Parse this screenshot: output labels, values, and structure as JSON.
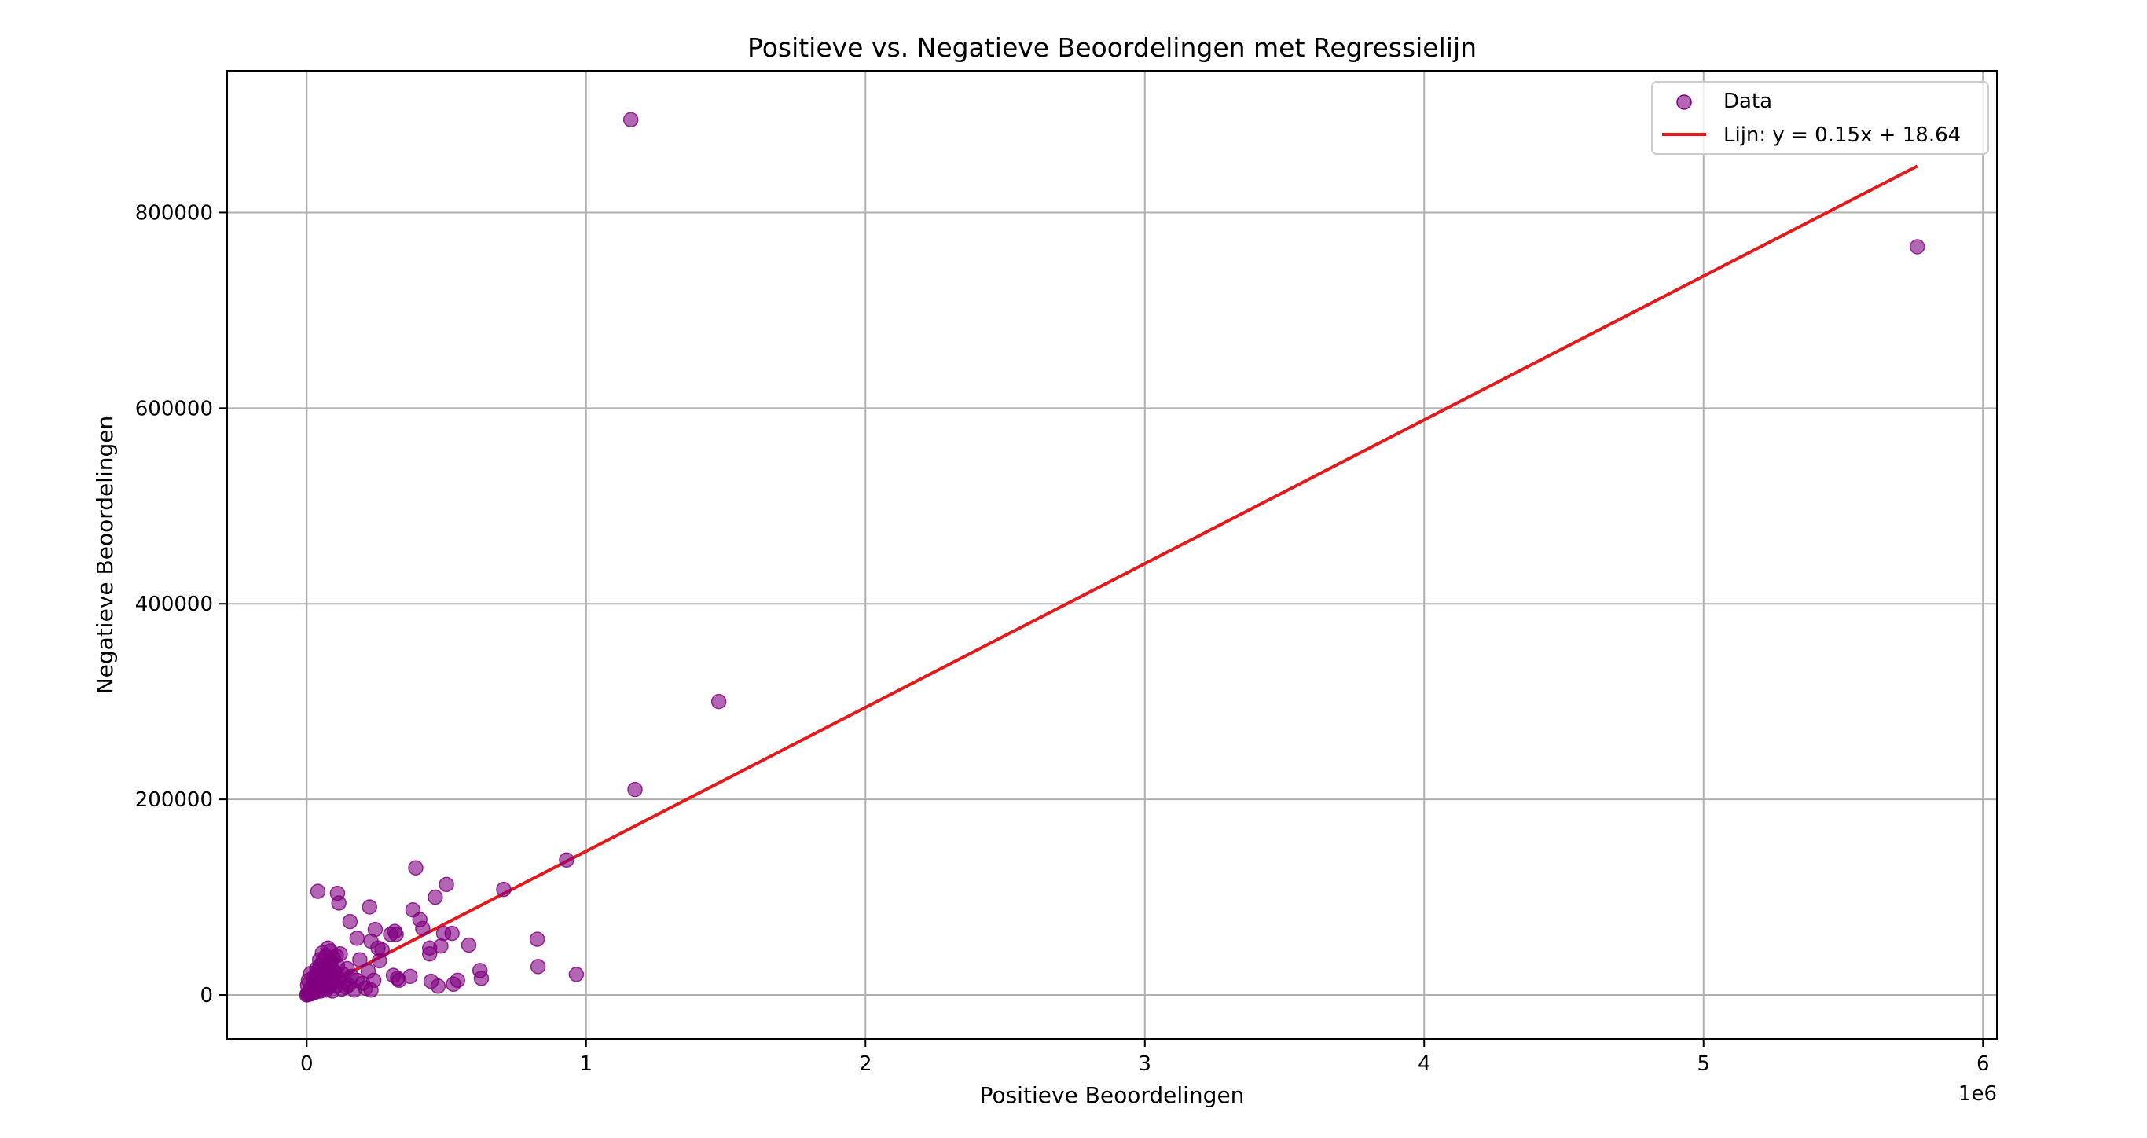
{
  "chart_data": {
    "type": "scatter",
    "title": "Positieve vs. Negatieve Beoordelingen met Regressielijn",
    "xlabel": "Positieve Beoordelingen",
    "ylabel": "Negatieve Beoordelingen",
    "x_multiplier_label": "1e6",
    "xlim": [
      -285000,
      6050000
    ],
    "ylim": [
      -45000,
      945000
    ],
    "xticks": [
      0,
      1000000,
      2000000,
      3000000,
      4000000,
      5000000,
      6000000
    ],
    "xtick_labels": [
      "0",
      "1",
      "2",
      "3",
      "4",
      "5",
      "6"
    ],
    "yticks": [
      0,
      200000,
      400000,
      600000,
      800000
    ],
    "ytick_labels": [
      "0",
      "200000",
      "400000",
      "600000",
      "800000"
    ],
    "grid": true,
    "legend_position": "top-right",
    "colors": {
      "points": "#800080",
      "line": "#e31a1c",
      "grid": "#b0b0b0"
    },
    "series": [
      {
        "name": "Data",
        "kind": "scatter",
        "points": [
          [
            0,
            0
          ],
          [
            2000,
            1000
          ],
          [
            5000,
            500
          ],
          [
            8000,
            3000
          ],
          [
            10000,
            2000
          ],
          [
            12000,
            6000
          ],
          [
            15000,
            1000
          ],
          [
            18000,
            4000
          ],
          [
            20000,
            8000
          ],
          [
            22000,
            2000
          ],
          [
            25000,
            12000
          ],
          [
            28000,
            5000
          ],
          [
            30000,
            15000
          ],
          [
            32000,
            3000
          ],
          [
            35000,
            20000
          ],
          [
            38000,
            9000
          ],
          [
            40000,
            25000
          ],
          [
            42000,
            6000
          ],
          [
            45000,
            14000
          ],
          [
            48000,
            30000
          ],
          [
            50000,
            4000
          ],
          [
            52000,
            18000
          ],
          [
            55000,
            10000
          ],
          [
            58000,
            35000
          ],
          [
            60000,
            7000
          ],
          [
            62000,
            22000
          ],
          [
            65000,
            12000
          ],
          [
            68000,
            40000
          ],
          [
            70000,
            5000
          ],
          [
            72000,
            28000
          ],
          [
            75000,
            16000
          ],
          [
            78000,
            8000
          ],
          [
            80000,
            32000
          ],
          [
            82000,
            20000
          ],
          [
            85000,
            45000
          ],
          [
            88000,
            11000
          ],
          [
            90000,
            26000
          ],
          [
            92000,
            4000
          ],
          [
            95000,
            38000
          ],
          [
            98000,
            14000
          ],
          [
            100000,
            24000
          ],
          [
            105000,
            9000
          ],
          [
            110000,
            30000
          ],
          [
            115000,
            17000
          ],
          [
            120000,
            42000
          ],
          [
            125000,
            6000
          ],
          [
            130000,
            21000
          ],
          [
            135000,
            13000
          ],
          [
            140000,
            8000
          ],
          [
            145000,
            27000
          ],
          [
            150000,
            10000
          ],
          [
            160000,
            19000
          ],
          [
            170000,
            5000
          ],
          [
            180000,
            15000
          ],
          [
            190000,
            36000
          ],
          [
            200000,
            12000
          ],
          [
            210000,
            7000
          ],
          [
            220000,
            24000
          ],
          [
            230000,
            5000
          ],
          [
            240000,
            15000
          ],
          [
            3000,
            10000
          ],
          [
            6000,
            15000
          ],
          [
            14000,
            22000
          ],
          [
            24000,
            18000
          ],
          [
            36000,
            27000
          ],
          [
            46000,
            36000
          ],
          [
            56000,
            43000
          ],
          [
            66000,
            30000
          ],
          [
            76000,
            48000
          ],
          [
            86000,
            34000
          ],
          [
            96000,
            20000
          ],
          [
            106000,
            40000
          ],
          [
            40000,
            106000
          ],
          [
            110000,
            104000
          ],
          [
            115000,
            94000
          ],
          [
            155000,
            75000
          ],
          [
            180000,
            58000
          ],
          [
            225000,
            90000
          ],
          [
            230000,
            55000
          ],
          [
            245000,
            67000
          ],
          [
            255000,
            48000
          ],
          [
            260000,
            35000
          ],
          [
            270000,
            46000
          ],
          [
            300000,
            62000
          ],
          [
            310000,
            20000
          ],
          [
            315000,
            65000
          ],
          [
            320000,
            62000
          ],
          [
            325000,
            17000
          ],
          [
            330000,
            15000
          ],
          [
            370000,
            19000
          ],
          [
            380000,
            87000
          ],
          [
            390000,
            130000
          ],
          [
            405000,
            77000
          ],
          [
            415000,
            68000
          ],
          [
            440000,
            48000
          ],
          [
            440000,
            42000
          ],
          [
            445000,
            14000
          ],
          [
            460000,
            100000
          ],
          [
            470000,
            9000
          ],
          [
            480000,
            50000
          ],
          [
            490000,
            63000
          ],
          [
            500000,
            113000
          ],
          [
            520000,
            63000
          ],
          [
            525000,
            11000
          ],
          [
            540000,
            15000
          ],
          [
            580000,
            51000
          ],
          [
            620000,
            25000
          ],
          [
            625000,
            17000
          ],
          [
            705000,
            108000
          ],
          [
            825000,
            57000
          ],
          [
            828000,
            29000
          ],
          [
            930000,
            138000
          ],
          [
            965000,
            21000
          ],
          [
            1160000,
            895000
          ],
          [
            1175000,
            210000
          ],
          [
            1475000,
            300000
          ],
          [
            5765000,
            765000
          ]
        ]
      },
      {
        "name": "Lijn: y = 0.15x + 18.64",
        "kind": "line",
        "slope": 0.147,
        "intercept": 18.64,
        "x_range": [
          0,
          5765000
        ]
      }
    ]
  }
}
